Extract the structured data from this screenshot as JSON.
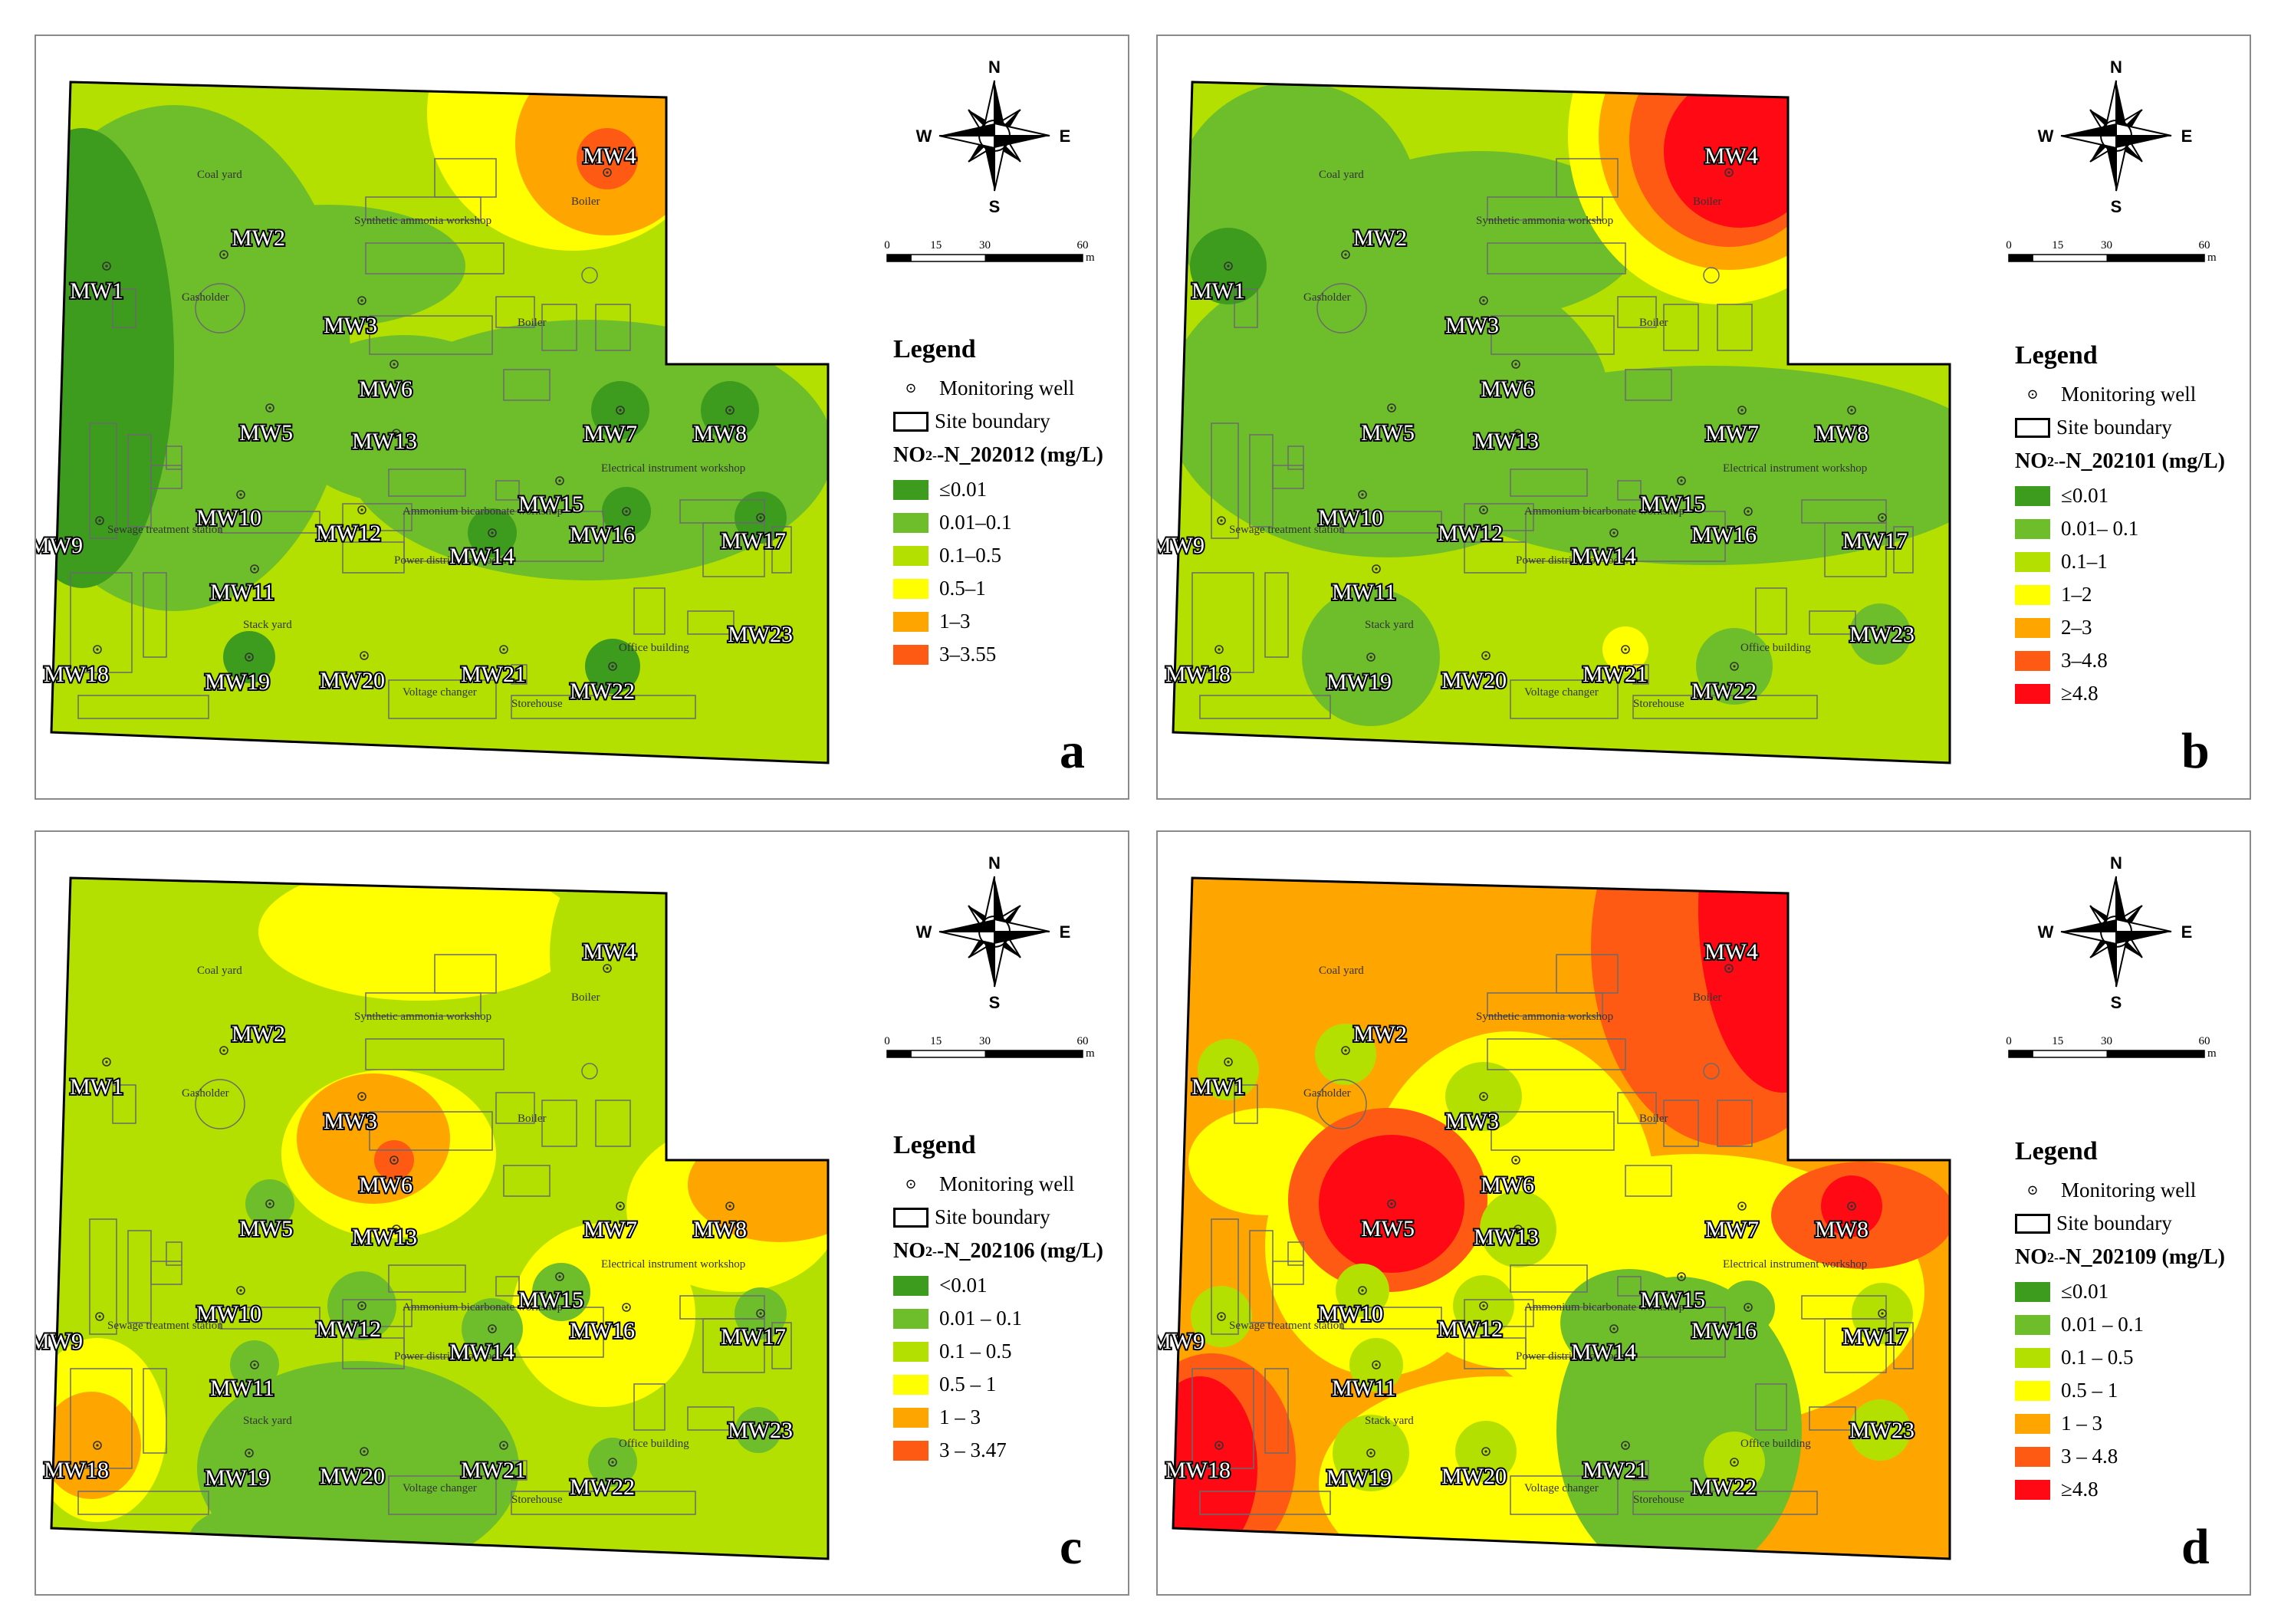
{
  "compass": {
    "n": "N",
    "s": "S",
    "e": "E",
    "w": "W"
  },
  "scale": {
    "ticks": [
      "0",
      "15",
      "30",
      "60"
    ],
    "unit": "m"
  },
  "site_labels": [
    {
      "id": "coal",
      "text": "Coal yard"
    },
    {
      "id": "synth",
      "text": "Synthetic ammonia workshop"
    },
    {
      "id": "gas",
      "text": "Gasholder"
    },
    {
      "id": "boiler1",
      "text": "Boiler"
    },
    {
      "id": "boiler2",
      "text": "Boiler"
    },
    {
      "id": "elec",
      "text": "Electrical instrument workshop"
    },
    {
      "id": "ammon",
      "text": "Ammonium bicarbonate workshop"
    },
    {
      "id": "sewage",
      "text": "Sewage treatment station"
    },
    {
      "id": "power",
      "text": "Power distribution room"
    },
    {
      "id": "stack",
      "text": "Stack yard"
    },
    {
      "id": "office",
      "text": "Office building"
    },
    {
      "id": "voltage",
      "text": "Voltage changer"
    },
    {
      "id": "store",
      "text": "Storehouse"
    }
  ],
  "wells": [
    "MW1",
    "MW2",
    "MW3",
    "MW4",
    "MW5",
    "MW6",
    "MW7",
    "MW8",
    "MW9",
    "MW10",
    "MW11",
    "MW12",
    "MW13",
    "MW14",
    "MW15",
    "MW16",
    "MW17",
    "MW18",
    "MW19",
    "MW20",
    "MW21",
    "MW22",
    "MW23"
  ],
  "legend_common": {
    "title": "Legend",
    "well": "Monitoring well",
    "boundary": "Site boundary"
  },
  "colors": {
    "dark_green": "#3d9b1e",
    "green": "#6ebe2c",
    "light_green": "#b4e000",
    "yellow": "#ffff00",
    "orange": "#ffa500",
    "red_orange": "#ff5a14",
    "red": "#ff0a14"
  },
  "panels": [
    {
      "letter": "a",
      "field_prefix": "NO",
      "field_suffix": "-N_202012 (mg/L)",
      "classes": [
        {
          "label": "≤0.01",
          "color": "#3d9b1e"
        },
        {
          "label": "0.01–0.1",
          "color": "#6ebe2c"
        },
        {
          "label": "0.1–0.5",
          "color": "#b4e000"
        },
        {
          "label": "0.5–1",
          "color": "#ffff00"
        },
        {
          "label": "1–3",
          "color": "#ffa500"
        },
        {
          "label": "3–3.55",
          "color": "#ff5a14"
        }
      ]
    },
    {
      "letter": "b",
      "field_prefix": "NO",
      "field_suffix": "-N_202101 (mg/L)",
      "classes": [
        {
          "label": "≤0.01",
          "color": "#3d9b1e"
        },
        {
          "label": "0.01– 0.1",
          "color": "#6ebe2c"
        },
        {
          "label": "0.1–1",
          "color": "#b4e000"
        },
        {
          "label": "1–2",
          "color": "#ffff00"
        },
        {
          "label": "2–3",
          "color": "#ffa500"
        },
        {
          "label": "3–4.8",
          "color": "#ff5a14"
        },
        {
          "label": "≥4.8",
          "color": "#ff0a14"
        }
      ]
    },
    {
      "letter": "c",
      "field_prefix": "NO",
      "field_suffix": "-N_202106 (mg/L)",
      "classes": [
        {
          "label": "<0.01",
          "color": "#3d9b1e"
        },
        {
          "label": "0.01 – 0.1",
          "color": "#6ebe2c"
        },
        {
          "label": "0.1 – 0.5",
          "color": "#b4e000"
        },
        {
          "label": "0.5 – 1",
          "color": "#ffff00"
        },
        {
          "label": "1 – 3",
          "color": "#ffa500"
        },
        {
          "label": "3 – 3.47",
          "color": "#ff5a14"
        }
      ]
    },
    {
      "letter": "d",
      "field_prefix": "NO",
      "field_suffix": "-N_202109 (mg/L)",
      "classes": [
        {
          "label": "≤0.01",
          "color": "#3d9b1e"
        },
        {
          "label": "0.01 – 0.1",
          "color": "#6ebe2c"
        },
        {
          "label": "0.1 – 0.5",
          "color": "#b4e000"
        },
        {
          "label": "0.5 – 1",
          "color": "#ffff00"
        },
        {
          "label": "1 – 3",
          "color": "#ffa500"
        },
        {
          "label": "3 – 4.8",
          "color": "#ff5a14"
        },
        {
          "label": "≥4.8",
          "color": "#ff0a14"
        }
      ]
    }
  ]
}
